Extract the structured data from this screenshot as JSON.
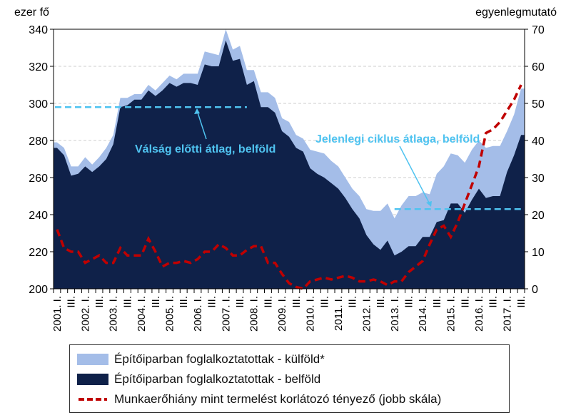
{
  "chart_data": {
    "type": "area",
    "left_axis_label": "ezer fő",
    "right_axis_label": "egyenlegmutató",
    "ylim_left": [
      200,
      340
    ],
    "ylim_right": [
      0,
      70
    ],
    "yticks_left": [
      200,
      220,
      240,
      260,
      280,
      300,
      320,
      340
    ],
    "yticks_right": [
      0,
      10,
      20,
      30,
      40,
      50,
      60,
      70
    ],
    "years": [
      "2001.",
      "2002.",
      "2003.",
      "2004.",
      "2005.",
      "2006.",
      "2007.",
      "2008.",
      "2009.",
      "2010.",
      "2011.",
      "2012.",
      "2013.",
      "2014.",
      "2015.",
      "2016.",
      "2017."
    ],
    "quarter_labels": [
      "I.",
      "III."
    ],
    "start": "2001 Q1",
    "end": "2017 Q3",
    "series": [
      {
        "name": "Építőiparban foglalkoztatottak - külföld*",
        "type": "area",
        "color": "#a4bde8",
        "axis": "left",
        "note": "top of stacked area (total)",
        "values": [
          279,
          276,
          266,
          266,
          271,
          267,
          271,
          276,
          283,
          303,
          303,
          305,
          305,
          310,
          307,
          311,
          315,
          313,
          316,
          316,
          316,
          328,
          327,
          326,
          340,
          329,
          331,
          318,
          318,
          306,
          306,
          303,
          292,
          290,
          283,
          281,
          275,
          274,
          273,
          269,
          266,
          260,
          254,
          250,
          243,
          242,
          242,
          246,
          238,
          245,
          250,
          250,
          252,
          251,
          262,
          266,
          273,
          272,
          268,
          275,
          280,
          276,
          277,
          277,
          285,
          294,
          308
        ]
      },
      {
        "name": "Építőiparban foglalkoztatottak - belföld",
        "type": "area",
        "color": "#0f2149",
        "axis": "left",
        "values": [
          276,
          272,
          261,
          262,
          266,
          263,
          266,
          270,
          278,
          298,
          299,
          302,
          302,
          307,
          304,
          307,
          311,
          309,
          311,
          311,
          310,
          321,
          320,
          320,
          334,
          323,
          324,
          310,
          312,
          298,
          298,
          295,
          285,
          282,
          276,
          274,
          265,
          262,
          260,
          257,
          254,
          249,
          243,
          238,
          229,
          224,
          221,
          226,
          218,
          220,
          223,
          223,
          228,
          228,
          236,
          237,
          246,
          246,
          241,
          248,
          254,
          249,
          250,
          250,
          263,
          272,
          283
        ]
      },
      {
        "name": "Munkaerőhiány mint termelést korlátozó tényező (jobb skála)",
        "type": "line",
        "style": "dashed",
        "color": "#c00000",
        "axis": "right",
        "values": [
          16,
          11,
          10,
          10,
          7,
          8,
          9,
          7,
          7,
          11,
          9,
          9,
          9,
          13.5,
          10,
          6,
          7,
          7,
          7.5,
          7,
          8,
          10,
          10,
          12,
          11,
          9,
          9,
          10.5,
          11.5,
          11.5,
          7,
          7,
          4,
          1.5,
          0.5,
          0,
          2,
          2.5,
          3,
          2.5,
          3,
          3.5,
          3,
          2,
          2,
          2.5,
          2,
          1,
          2,
          2,
          4.5,
          6,
          7.5,
          12,
          16,
          17,
          14,
          18,
          23,
          28,
          33,
          42,
          43,
          45,
          48,
          51,
          55
        ]
      }
    ],
    "reference_lines": [
      {
        "label": "Válság előtti átlag, belföld",
        "value": 298,
        "from_index": 0,
        "to_index": 27
      },
      {
        "label": "Jelenlegi ciklus átlaga, belföld",
        "value": 243,
        "from_index": 48,
        "to_index": 66
      }
    ],
    "colors": {
      "ref": "#4fc3f0",
      "grid": "#cccccc"
    },
    "legend_position": "bottom"
  }
}
